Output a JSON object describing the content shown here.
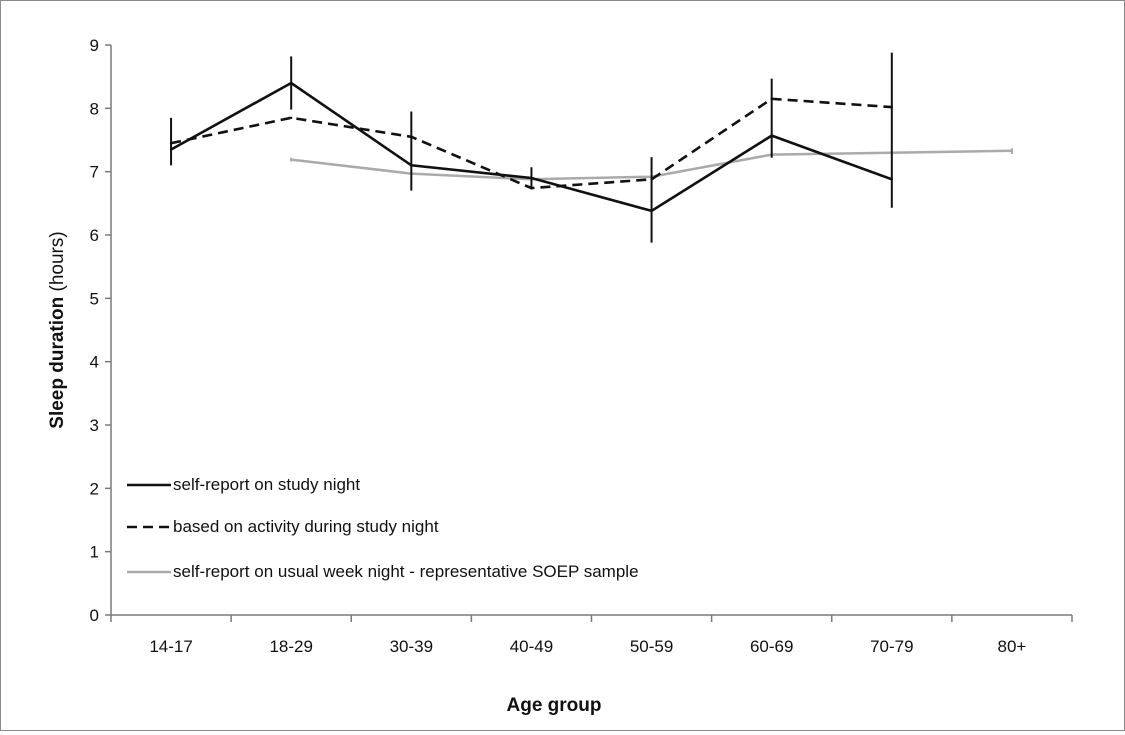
{
  "chart_data": {
    "type": "line",
    "title": "",
    "xlabel": "Age group",
    "ylabel": "Sleep duration",
    "ylabel_unit": "(hours)",
    "categories": [
      "14-17",
      "18-29",
      "30-39",
      "40-49",
      "50-59",
      "60-69",
      "70-79",
      "80+"
    ],
    "ylim": [
      0,
      9
    ],
    "yticks": [
      0,
      1,
      2,
      3,
      4,
      5,
      6,
      7,
      8,
      9
    ],
    "grid": false,
    "legend_position": "bottom-left",
    "series": [
      {
        "name": "self-report on study night",
        "color": "#111111",
        "style": "solid",
        "values": [
          7.35,
          8.4,
          7.1,
          6.9,
          6.38,
          7.57,
          6.88,
          null
        ],
        "error_low": [
          7.1,
          7.98,
          6.7,
          6.72,
          5.88,
          7.22,
          6.43,
          null
        ],
        "error_high": [
          7.85,
          8.82,
          7.95,
          7.07,
          7.23,
          8.47,
          8.88,
          null
        ]
      },
      {
        "name": "based on activity during study night",
        "color": "#111111",
        "style": "dashed",
        "values": [
          7.45,
          7.85,
          7.55,
          6.74,
          6.88,
          8.15,
          8.02,
          null
        ]
      },
      {
        "name": "self-report on usual week night - representative SOEP sample",
        "color": "#aaaaaa",
        "style": "solid",
        "values": [
          null,
          7.19,
          6.97,
          6.88,
          6.92,
          7.27,
          7.3,
          7.33
        ],
        "error_low": [
          null,
          7.16,
          null,
          null,
          null,
          null,
          null,
          7.28
        ],
        "error_high": [
          null,
          7.22,
          null,
          null,
          null,
          null,
          null,
          7.37
        ]
      }
    ]
  }
}
